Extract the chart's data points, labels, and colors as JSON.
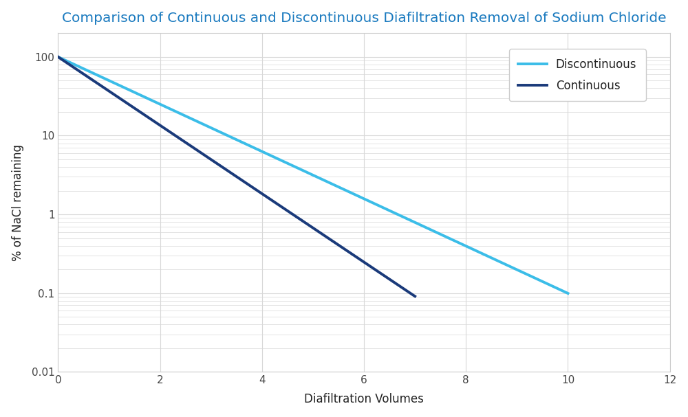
{
  "title": "Comparison of Continuous and Discontinuous Diafiltration Removal of Sodium Chloride",
  "xlabel": "Diafiltration Volumes",
  "ylabel": "% of NaCl remaining",
  "xlim": [
    0,
    12
  ],
  "ylim": [
    0.01,
    200
  ],
  "xticks": [
    0,
    2,
    4,
    6,
    8,
    10,
    12
  ],
  "background_color": "#ffffff",
  "plot_bg_color": "#ffffff",
  "grid_color": "#d8d8d8",
  "title_color": "#1a7abf",
  "axis_label_color": "#222222",
  "tick_color": "#444444",
  "spine_color": "#cccccc",
  "continuous_color": "#1a3a7a",
  "discontinuous_color": "#3bbde8",
  "continuous_label": "Continuous",
  "discontinuous_label": "Discontinuous",
  "line_width": 2.8,
  "title_fontsize": 14.5,
  "label_fontsize": 12,
  "tick_fontsize": 11,
  "legend_fontsize": 12,
  "figsize": [
    10.0,
    6.07
  ],
  "cont_x_end": 7.0,
  "disc_x_end": 10.0,
  "cont_slope": 1.0,
  "disc_slope": 0.6913
}
